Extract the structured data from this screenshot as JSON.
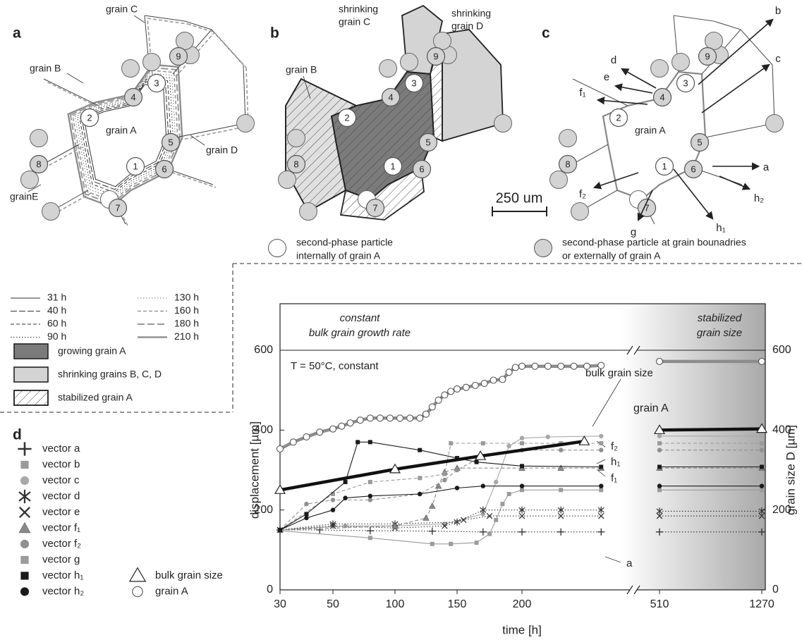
{
  "panel_a": {
    "label": "a",
    "grain_labels": [
      "grain C",
      "grain B",
      "grain A",
      "grain D",
      "grainE"
    ],
    "particles": [
      "1",
      "2",
      "3",
      "4",
      "5",
      "6",
      "7",
      "8",
      "9"
    ]
  },
  "panel_b": {
    "label": "b",
    "grain_labels": [
      [
        "shrinking",
        "grain C"
      ],
      [
        "shrinking",
        "grain D"
      ],
      [
        "grain B"
      ]
    ],
    "particles": [
      "1",
      "2",
      "3",
      "4",
      "5",
      "6",
      "7",
      "8",
      "9"
    ],
    "scale_bar": "250 um"
  },
  "panel_c": {
    "label": "c",
    "grain_labels": [
      "grain A"
    ],
    "particles": [
      "1",
      "2",
      "3",
      "4",
      "5",
      "6",
      "7",
      "8",
      "9"
    ],
    "vectors": [
      "a",
      "b",
      "c",
      "d",
      "e",
      "f₁",
      "f₂",
      "g",
      "h₁",
      "h₂"
    ]
  },
  "time_legend": [
    "31 h",
    "40 h",
    "60 h",
    "90 h",
    "130 h",
    "160 h",
    "180 h",
    "210 h"
  ],
  "fill_legend": [
    "growing grain A",
    "shrinking grains B, C, D",
    "stabilized grain A"
  ],
  "particle_legend": [
    [
      "second-phase particle",
      "internally of grain A"
    ],
    [
      "second-phase particle at grain bounadries",
      "or externally of grain A"
    ]
  ],
  "chart_data": {
    "type": "line",
    "panel_label": "d",
    "x_label": "time  [h]",
    "y_label": "displacement [µm]",
    "y2_label": "grain size D [µm]",
    "header": [
      "constant",
      "bulk grain growth rate",
      "stabilized",
      "grain size"
    ],
    "annotations": [
      "T = 50°C, constant",
      "grain A",
      "bulk grain size",
      "f₂",
      "h₁",
      "f₁",
      "a"
    ],
    "xlim": [
      30,
      1270
    ],
    "xticks": [
      30,
      50,
      100,
      150,
      200,
      510,
      1270
    ],
    "ylim": [
      0,
      600
    ],
    "yticks": [
      0,
      200,
      400,
      600
    ],
    "y2lim": [
      0,
      600
    ],
    "y2ticks": [
      0,
      200,
      400,
      600
    ],
    "series": [
      {
        "name": "vector a",
        "color": "#333333",
        "marker": "plus",
        "line": "dotted",
        "x": [
          30,
          45,
          80,
          130,
          170,
          200,
          230,
          261,
          510,
          1270
        ],
        "values": [
          150,
          150,
          148,
          147,
          145,
          145,
          145,
          145,
          145,
          145
        ]
      },
      {
        "name": "vector b",
        "color": "#9a9a9a",
        "marker": "square",
        "line": "solid",
        "x": [
          30,
          80,
          130,
          145,
          165,
          175,
          180,
          185,
          190,
          200,
          230,
          261,
          510,
          1270
        ],
        "values": [
          148,
          130,
          115,
          115,
          118,
          140,
          175,
          215,
          240,
          250,
          250,
          250,
          250,
          250
        ]
      },
      {
        "name": "vector c",
        "color": "#a8a8a8",
        "marker": "circle",
        "line": "solid",
        "x": [
          30,
          60,
          100,
          140,
          170,
          180,
          190,
          200,
          220,
          261,
          510,
          1270
        ],
        "values": [
          150,
          160,
          160,
          165,
          190,
          270,
          360,
          380,
          383,
          385,
          385,
          385
        ]
      },
      {
        "name": "vector d",
        "color": "#333333",
        "marker": "asterisk",
        "line": "dotted",
        "x": [
          30,
          50,
          100,
          150,
          170,
          200,
          230,
          261,
          510,
          1270
        ],
        "values": [
          150,
          165,
          165,
          170,
          200,
          200,
          200,
          200,
          197,
          197
        ]
      },
      {
        "name": "vector e",
        "color": "#333333",
        "marker": "cross",
        "line": "dotted",
        "x": [
          30,
          50,
          100,
          140,
          155,
          175,
          200,
          230,
          261,
          510,
          1270
        ],
        "values": [
          150,
          160,
          155,
          160,
          175,
          185,
          185,
          185,
          185,
          185,
          185
        ]
      },
      {
        "name": "vector f₁",
        "color": "#8a8a8a",
        "marker": "triangle",
        "line": "dashed",
        "x": [
          30,
          100,
          125,
          130,
          135,
          140,
          150,
          200,
          230,
          261,
          510,
          1270
        ],
        "values": [
          150,
          160,
          180,
          210,
          260,
          295,
          305,
          305,
          305,
          305,
          305,
          305
        ]
      },
      {
        "name": "vector f₂",
        "color": "#909090",
        "marker": "circle",
        "line": "dashed",
        "x": [
          30,
          40,
          50,
          80,
          120,
          140,
          150,
          170,
          200,
          230,
          261,
          510,
          1270
        ],
        "values": [
          150,
          215,
          225,
          225,
          240,
          275,
          300,
          335,
          350,
          350,
          350,
          350,
          350
        ]
      },
      {
        "name": "vector g",
        "color": "#9a9a9a",
        "marker": "square",
        "line": "dashed",
        "x": [
          30,
          50,
          80,
          120,
          140,
          145,
          170,
          200,
          230,
          261,
          510,
          1270
        ],
        "values": [
          150,
          240,
          270,
          280,
          290,
          367,
          367,
          367,
          367,
          367,
          367,
          367
        ]
      },
      {
        "name": "vector h₁",
        "color": "#1a1a1a",
        "marker": "square",
        "line": "solid",
        "x": [
          30,
          40,
          60,
          70,
          80,
          120,
          150,
          165,
          200,
          261,
          510,
          1270
        ],
        "values": [
          150,
          190,
          270,
          370,
          370,
          350,
          330,
          320,
          310,
          308,
          308,
          308
        ]
      },
      {
        "name": "vector h₂",
        "color": "#1a1a1a",
        "marker": "circle",
        "line": "solid",
        "x": [
          30,
          40,
          50,
          60,
          80,
          120,
          150,
          170,
          200,
          261,
          510,
          1270
        ],
        "values": [
          150,
          180,
          200,
          230,
          235,
          240,
          255,
          260,
          260,
          260,
          260,
          260
        ]
      },
      {
        "name": "bulk grain size",
        "color": "#111111",
        "marker": "triangle-open",
        "line": "solid",
        "x": [
          30,
          100,
          168,
          248,
          510,
          1270
        ],
        "values": [
          250,
          302,
          335,
          372,
          400,
          403
        ]
      },
      {
        "name": "grain A",
        "color": "#8c8c8c",
        "marker": "circle-open",
        "line": "solid",
        "x": [
          30,
          35,
          40,
          45,
          50,
          57,
          64,
          72,
          80,
          88,
          96,
          104,
          112,
          120,
          125,
          130,
          135,
          140,
          145,
          150,
          157,
          164,
          171,
          178,
          185,
          190,
          195,
          200,
          210,
          220,
          230,
          240,
          250,
          261,
          510,
          1270
        ],
        "values": [
          353,
          370,
          383,
          395,
          403,
          410,
          418,
          425,
          430,
          430,
          430,
          430,
          430,
          430,
          440,
          458,
          475,
          488,
          497,
          503,
          507,
          512,
          517,
          525,
          527,
          545,
          557,
          560,
          560,
          560,
          560,
          560,
          560,
          562,
          572,
          572
        ]
      }
    ]
  }
}
